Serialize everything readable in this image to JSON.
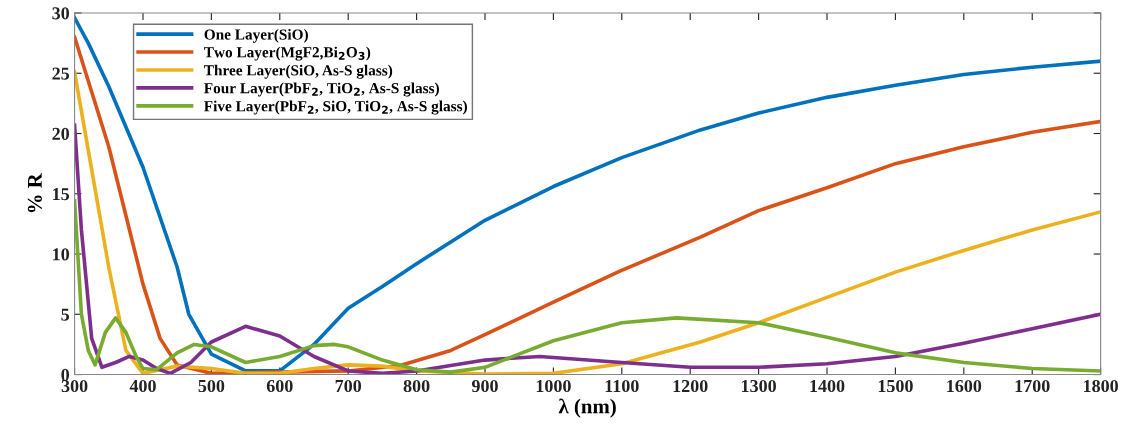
{
  "chart_data": {
    "type": "line",
    "xlabel": "λ (nm)",
    "ylabel": "% R",
    "xlim": [
      300,
      1800
    ],
    "ylim": [
      0,
      30
    ],
    "xticks": [
      300,
      400,
      500,
      600,
      700,
      800,
      900,
      1000,
      1100,
      1200,
      1300,
      1400,
      1500,
      1600,
      1700,
      1800
    ],
    "yticks": [
      0,
      5,
      10,
      15,
      20,
      25,
      30
    ],
    "grid": false,
    "legend": "top left",
    "line_style": "solid",
    "marker": "none",
    "series": [
      {
        "name": "One Layer(SiO)",
        "color": "#0072bd",
        "x": [
          300,
          320,
          350,
          400,
          450,
          467,
          500,
          550,
          600,
          650,
          700,
          750,
          800,
          850,
          900,
          1000,
          1100,
          1215,
          1300,
          1400,
          1500,
          1600,
          1700,
          1800
        ],
        "values": [
          29.6,
          27.5,
          23.9,
          17.2,
          8.9,
          5,
          1.7,
          0.3,
          0.3,
          2.5,
          5.5,
          7.3,
          9.2,
          11,
          12.8,
          15.6,
          18,
          20.3,
          21.7,
          23,
          24,
          24.9,
          25.5,
          26
        ]
      },
      {
        "name": "Two Layer(MgF2,Bi$_{2}$O$_{3}$)",
        "color": "#d95319",
        "x": [
          300,
          350,
          400,
          425,
          450,
          500,
          600,
          700,
          776,
          850,
          903,
          1000,
          1098,
          1215,
          1300,
          1400,
          1500,
          1600,
          1700,
          1800
        ],
        "values": [
          28,
          18.9,
          7.5,
          3,
          0.8,
          0.1,
          0.2,
          0.3,
          0.75,
          2,
          3.4,
          6,
          8.6,
          11.4,
          13.6,
          15.5,
          17.5,
          18.9,
          20.1,
          21
        ]
      },
      {
        "name": "Three Layer(SiO, As-S glass)",
        "color": "#edb120",
        "x": [
          300,
          325,
          350,
          375,
          400,
          450,
          500,
          550,
          600,
          650,
          700,
          750,
          800,
          900,
          1000,
          1100,
          1215,
          1300,
          1400,
          1500,
          1600,
          1700,
          1800
        ],
        "values": [
          25.1,
          17,
          8.9,
          2,
          0.1,
          0.7,
          0.5,
          0.1,
          0.1,
          0.5,
          0.8,
          0.7,
          0.3,
          0.05,
          0.1,
          0.9,
          2.7,
          4.3,
          6.4,
          8.5,
          10.3,
          12,
          13.5
        ]
      },
      {
        "name": "Four Layer(PbF$_{2}$, TiO$_{2}$, As-S glass)",
        "color": "#7e2f8e",
        "x": [
          300,
          310,
          325,
          340,
          360,
          380,
          400,
          420,
          440,
          470,
          500,
          550,
          600,
          650,
          700,
          750,
          800,
          900,
          980,
          1100,
          1200,
          1300,
          1400,
          1500,
          1600,
          1700,
          1800
        ],
        "values": [
          20.7,
          12,
          3,
          0.6,
          1,
          1.5,
          1.2,
          0.5,
          0.1,
          1,
          2.7,
          4,
          3.2,
          1.5,
          0.3,
          0.1,
          0.3,
          1.2,
          1.5,
          1,
          0.6,
          0.6,
          0.9,
          1.5,
          2.6,
          3.8,
          5
        ]
      },
      {
        "name": "Five Layer(PbF$_{2}$, SiO, TiO$_{2}$, As-S glass)",
        "color": "#77ac30",
        "x": [
          300,
          310,
          320,
          330,
          345,
          360,
          375,
          390,
          400,
          420,
          450,
          475,
          500,
          550,
          600,
          650,
          680,
          700,
          750,
          800,
          850,
          900,
          1000,
          1100,
          1180,
          1300,
          1400,
          1500,
          1600,
          1700,
          1800
        ],
        "values": [
          14.4,
          5,
          2,
          0.8,
          3.5,
          4.7,
          3.5,
          1.5,
          0.5,
          0.4,
          1.8,
          2.5,
          2.3,
          1,
          1.5,
          2.4,
          2.5,
          2.3,
          1.2,
          0.4,
          0.2,
          0.6,
          2.8,
          4.3,
          4.7,
          4.3,
          3.1,
          1.8,
          1,
          0.5,
          0.3
        ]
      }
    ]
  }
}
